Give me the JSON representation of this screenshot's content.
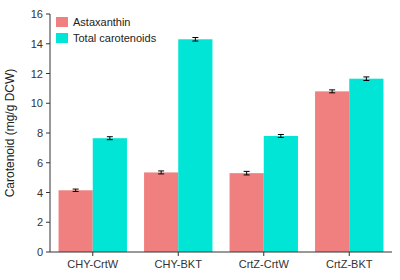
{
  "chart_data": {
    "type": "bar",
    "categories": [
      "CHY-CrtW",
      "CHY-BKT",
      "CrtZ-CrtW",
      "CrtZ-BKT"
    ],
    "series": [
      {
        "name": "Astaxanthin",
        "color": "#F08080",
        "values": [
          4.15,
          5.35,
          5.3,
          10.8
        ],
        "errors": [
          0.08,
          0.1,
          0.12,
          0.1
        ]
      },
      {
        "name": "Total carotenoids",
        "color": "#00E5D5",
        "values": [
          7.65,
          14.3,
          7.8,
          11.65
        ],
        "errors": [
          0.1,
          0.12,
          0.1,
          0.12
        ]
      }
    ],
    "ylabel": "Carotenoid (mg/g DCW)",
    "ylim": [
      0,
      16
    ],
    "yticks": [
      0,
      2,
      4,
      6,
      8,
      10,
      12,
      14,
      16
    ],
    "grid": false,
    "legend": "upper left"
  }
}
